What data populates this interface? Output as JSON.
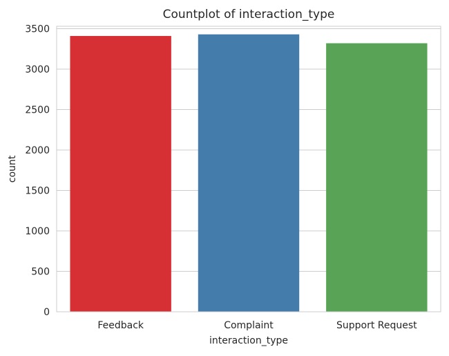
{
  "chart_data": {
    "type": "bar",
    "title": "Countplot of interaction_type",
    "xlabel": "interaction_type",
    "ylabel": "count",
    "categories": [
      "Feedback",
      "Complaint",
      "Support Request"
    ],
    "values": [
      3410,
      3430,
      3320
    ],
    "colors": [
      "#d62f34",
      "#447cac",
      "#58a355"
    ],
    "ylim": [
      0,
      3500
    ],
    "yticks": [
      0,
      500,
      1000,
      1500,
      2000,
      2500,
      3000,
      3500
    ],
    "grid": true,
    "grid_axis": "y"
  }
}
